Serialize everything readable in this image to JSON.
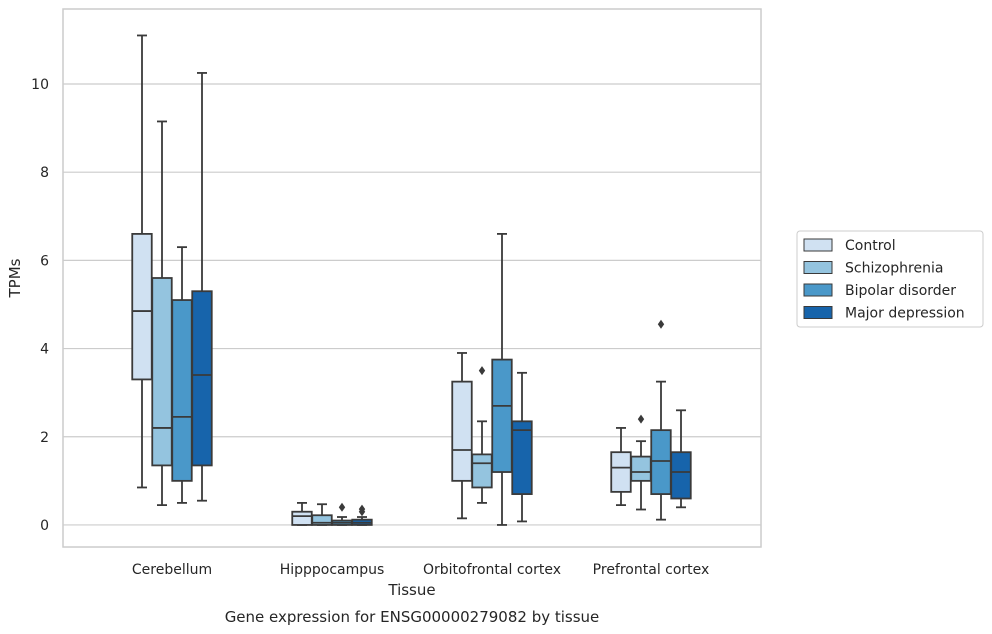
{
  "chart_data": {
    "type": "box",
    "xlabel": "Tissue",
    "ylabel": "TPMs",
    "caption": "Gene expression for ENSG00000279082 by tissue",
    "ylim": [
      -0.5,
      11.7
    ],
    "yticks": [
      0,
      2,
      4,
      6,
      8,
      10
    ],
    "grid": "horizontal",
    "legend_position": "right",
    "categories": [
      "Cerebellum",
      "Hipppocampus",
      "Orbitofrontal cortex",
      "Prefrontal cortex"
    ],
    "series": [
      {
        "name": "Control",
        "color": "#d0e1f2",
        "boxes": [
          {
            "min": 0.85,
            "q1": 3.3,
            "median": 4.85,
            "q3": 6.6,
            "max": 11.1,
            "outliers": []
          },
          {
            "min": 0.0,
            "q1": 0.0,
            "median": 0.2,
            "q3": 0.3,
            "max": 0.5,
            "outliers": []
          },
          {
            "min": 0.15,
            "q1": 1.0,
            "median": 1.7,
            "q3": 3.25,
            "max": 3.9,
            "outliers": []
          },
          {
            "min": 0.45,
            "q1": 0.75,
            "median": 1.3,
            "q3": 1.65,
            "max": 2.2,
            "outliers": []
          }
        ]
      },
      {
        "name": "Schizophrenia",
        "color": "#94c4df",
        "boxes": [
          {
            "min": 0.45,
            "q1": 1.35,
            "median": 2.2,
            "q3": 5.6,
            "max": 9.15,
            "outliers": []
          },
          {
            "min": 0.0,
            "q1": 0.0,
            "median": 0.05,
            "q3": 0.22,
            "max": 0.47,
            "outliers": []
          },
          {
            "min": 0.5,
            "q1": 0.85,
            "median": 1.4,
            "q3": 1.6,
            "max": 2.35,
            "outliers": [
              3.5
            ]
          },
          {
            "min": 0.35,
            "q1": 1.0,
            "median": 1.2,
            "q3": 1.55,
            "max": 1.9,
            "outliers": [
              2.4
            ]
          }
        ]
      },
      {
        "name": "Bipolar disorder",
        "color": "#4a98c9",
        "boxes": [
          {
            "min": 0.5,
            "q1": 1.0,
            "median": 2.45,
            "q3": 5.1,
            "max": 6.3,
            "outliers": []
          },
          {
            "min": 0.0,
            "q1": 0.0,
            "median": 0.05,
            "q3": 0.1,
            "max": 0.18,
            "outliers": [
              0.4
            ]
          },
          {
            "min": 0.0,
            "q1": 1.2,
            "median": 2.7,
            "q3": 3.75,
            "max": 6.6,
            "outliers": []
          },
          {
            "min": 0.12,
            "q1": 0.7,
            "median": 1.45,
            "q3": 2.15,
            "max": 3.25,
            "outliers": [
              4.55
            ]
          }
        ]
      },
      {
        "name": "Major depression",
        "color": "#1764ab",
        "boxes": [
          {
            "min": 0.55,
            "q1": 1.35,
            "median": 3.4,
            "q3": 5.3,
            "max": 10.25,
            "outliers": []
          },
          {
            "min": 0.0,
            "q1": 0.0,
            "median": 0.05,
            "q3": 0.12,
            "max": 0.18,
            "outliers": [
              0.3,
              0.36
            ]
          },
          {
            "min": 0.08,
            "q1": 0.7,
            "median": 2.15,
            "q3": 2.35,
            "max": 3.45,
            "outliers": []
          },
          {
            "min": 0.4,
            "q1": 0.6,
            "median": 1.2,
            "q3": 1.65,
            "max": 2.6,
            "outliers": []
          }
        ]
      }
    ]
  }
}
